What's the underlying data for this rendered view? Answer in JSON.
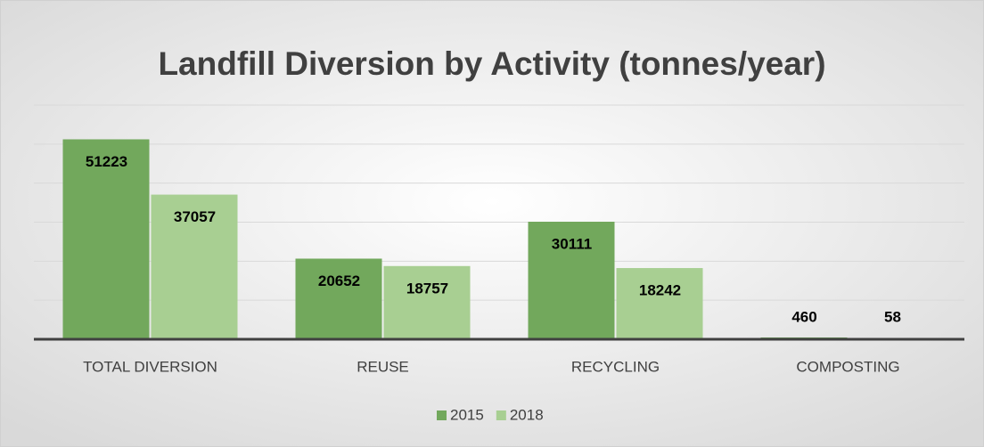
{
  "chart_data": {
    "type": "bar",
    "title": "Landfill Diversion by Activity (tonnes/year)",
    "categories": [
      "TOTAL DIVERSION",
      "REUSE",
      "RECYCLING",
      "COMPOSTING"
    ],
    "series": [
      {
        "name": "2015",
        "color": "#72a85c",
        "values": [
          51223,
          20652,
          30111,
          460
        ]
      },
      {
        "name": "2018",
        "color": "#a8cf92",
        "values": [
          37057,
          18757,
          18242,
          58
        ]
      }
    ],
    "ylim": [
      0,
      60000
    ],
    "yticks": [
      0,
      10000,
      20000,
      30000,
      40000,
      50000,
      60000
    ],
    "grid": true,
    "legend": "bottom"
  }
}
